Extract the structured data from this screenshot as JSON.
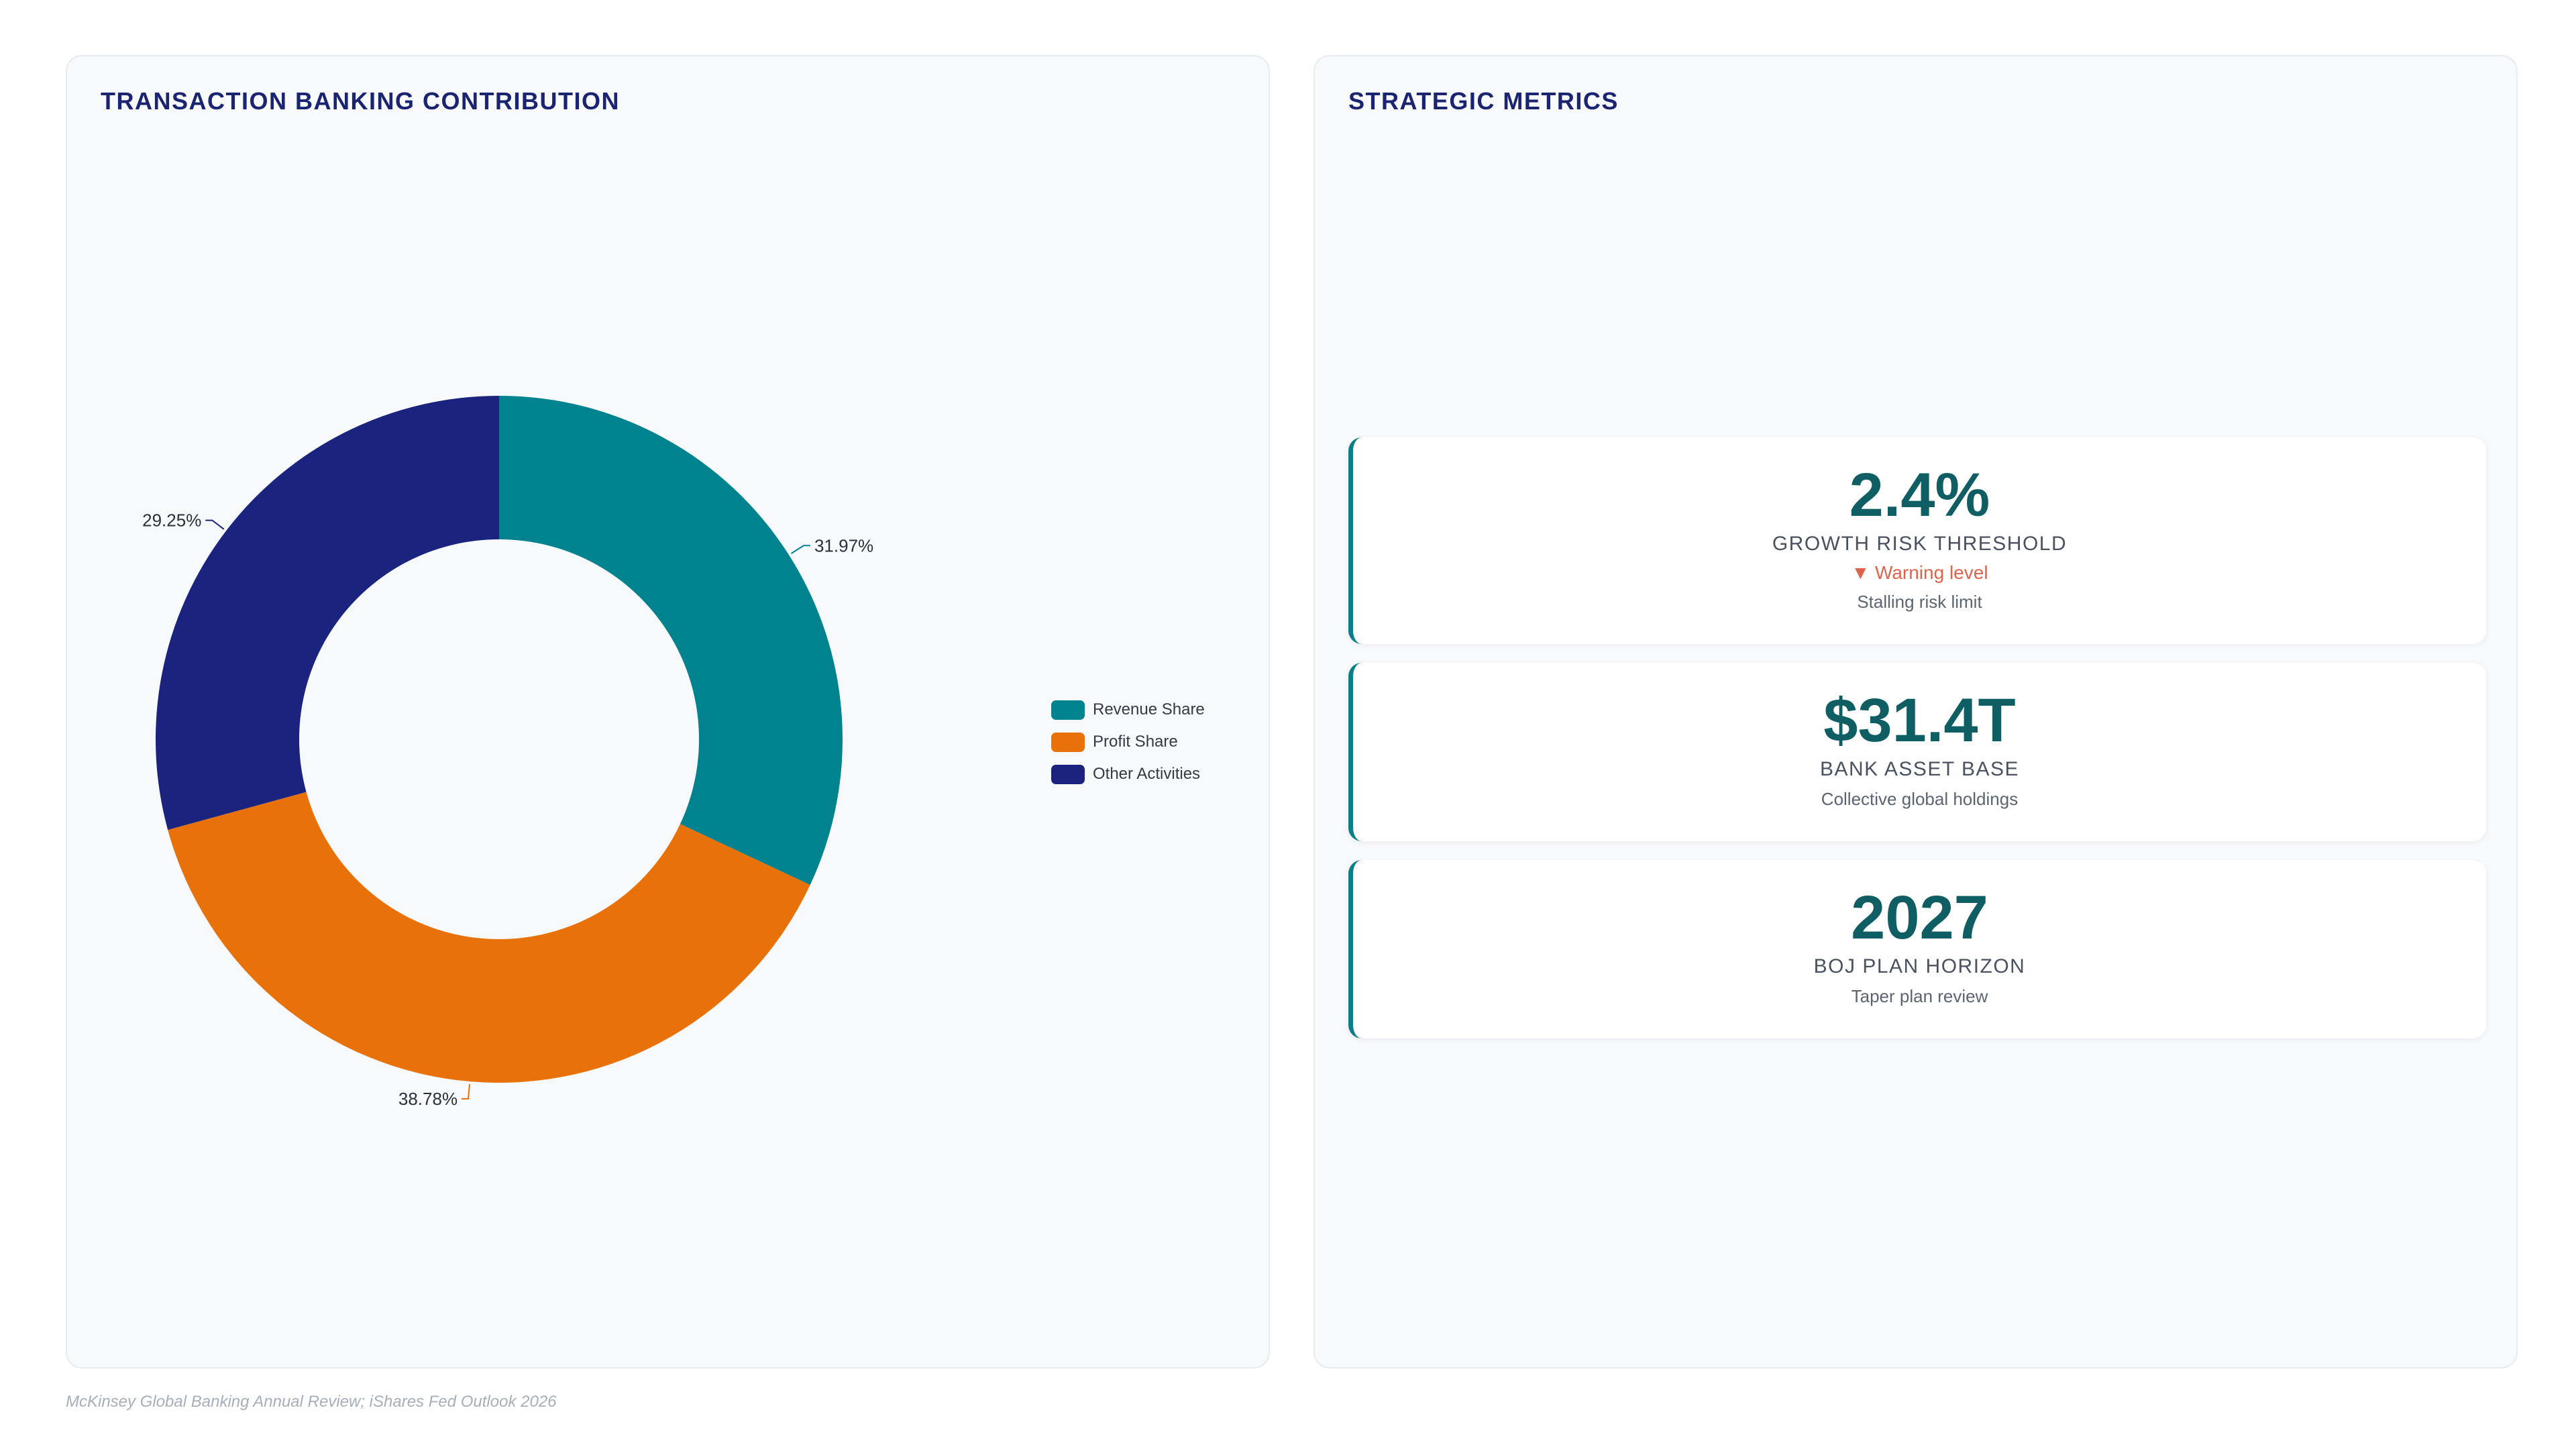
{
  "left_panel": {
    "title": "TRANSACTION BANKING CONTRIBUTION"
  },
  "right_panel": {
    "title": "STRATEGIC METRICS"
  },
  "chart_data": {
    "type": "pie",
    "donut": true,
    "title": "TRANSACTION BANKING CONTRIBUTION",
    "categories": [
      "Revenue Share",
      "Profit Share",
      "Other Activities"
    ],
    "values": [
      31.97,
      38.78,
      29.25
    ],
    "value_labels": [
      "31.97%",
      "38.78%",
      "29.25%"
    ],
    "colors": [
      "#00838f",
      "#e8710a",
      "#1a237e"
    ],
    "legend_position": "right"
  },
  "legend": [
    {
      "label": "Revenue Share",
      "color": "#00838f"
    },
    {
      "label": "Profit Share",
      "color": "#e8710a"
    },
    {
      "label": "Other Activities",
      "color": "#1a237e"
    }
  ],
  "metrics": [
    {
      "value": "2.4%",
      "label": "GROWTH RISK THRESHOLD",
      "warning": "▼ Warning level",
      "note": "Stalling risk limit"
    },
    {
      "value": "$31.4T",
      "label": "BANK ASSET BASE",
      "note": "Collective global holdings"
    },
    {
      "value": "2027",
      "label": "BOJ PLAN HORIZON",
      "note": "Taper plan review"
    }
  ],
  "footer": {
    "source": "McKinsey Global Banking Annual Review; iShares Fed Outlook 2026"
  }
}
